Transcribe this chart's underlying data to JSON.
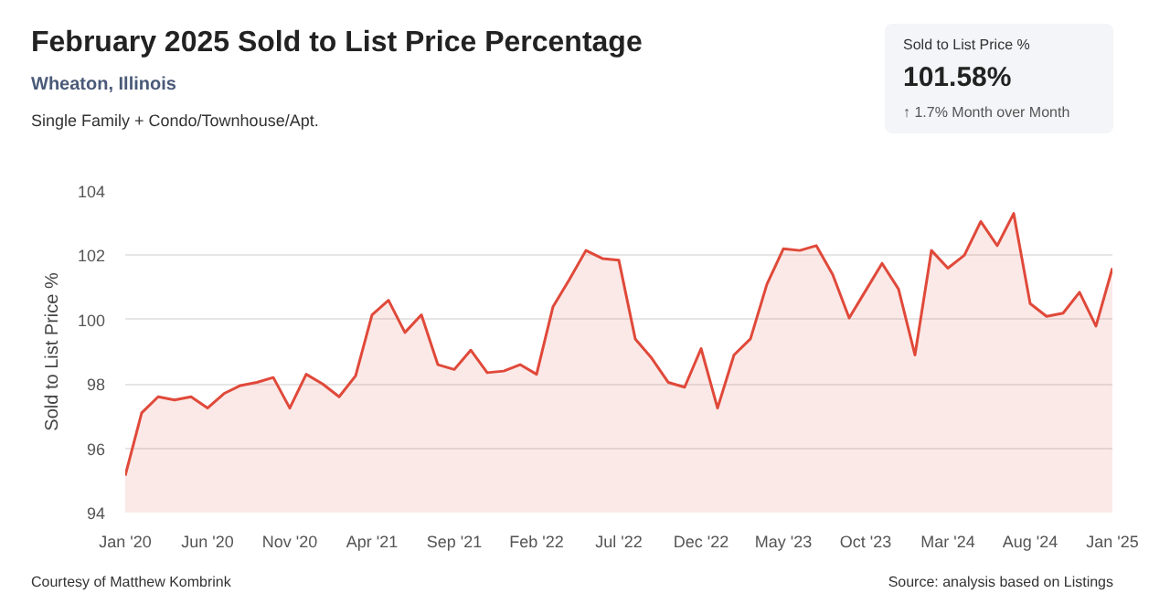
{
  "chart_data": {
    "type": "area",
    "title": "February 2025 Sold to List Price Percentage",
    "subtitle": "Wheaton, Illinois",
    "annotations": [
      "Single Family + Condo/Townhouse/Apt.",
      "Sold to List Price %",
      "101.58%",
      "↑ 1.7% Month over Month",
      "Courtesy of Matthew Kombrink",
      "Source: analysis based on Listings"
    ],
    "ylabel": "Sold to List Price %",
    "x": [
      "2020-01",
      "2020-02",
      "2020-03",
      "2020-04",
      "2020-05",
      "2020-06",
      "2020-07",
      "2020-08",
      "2020-09",
      "2020-10",
      "2020-11",
      "2020-12",
      "2021-01",
      "2021-02",
      "2021-03",
      "2021-04",
      "2021-05",
      "2021-06",
      "2021-07",
      "2021-08",
      "2021-09",
      "2021-10",
      "2021-11",
      "2021-12",
      "2022-01",
      "2022-02",
      "2022-03",
      "2022-04",
      "2022-05",
      "2022-06",
      "2022-07",
      "2022-08",
      "2022-09",
      "2022-10",
      "2022-11",
      "2022-12",
      "2023-01",
      "2023-02",
      "2023-03",
      "2023-04",
      "2023-05",
      "2023-06",
      "2023-07",
      "2023-08",
      "2023-09",
      "2023-10",
      "2023-11",
      "2023-12",
      "2024-01",
      "2024-02",
      "2024-03",
      "2024-04",
      "2024-05",
      "2024-06",
      "2024-07",
      "2024-08",
      "2024-09",
      "2024-10",
      "2024-11",
      "2024-12",
      "2025-01"
    ],
    "values": [
      95.15,
      97.1,
      97.6,
      97.5,
      97.6,
      97.25,
      97.7,
      97.95,
      98.05,
      98.2,
      97.25,
      98.3,
      98.0,
      97.6,
      98.25,
      100.15,
      100.6,
      99.6,
      100.15,
      98.6,
      98.45,
      99.05,
      98.35,
      98.4,
      98.6,
      98.3,
      100.4,
      101.25,
      102.15,
      101.9,
      101.85,
      99.4,
      98.8,
      98.05,
      97.9,
      99.1,
      97.25,
      98.9,
      99.4,
      101.1,
      102.2,
      102.15,
      102.3,
      101.4,
      100.05,
      100.9,
      101.75,
      100.95,
      98.9,
      102.15,
      101.6,
      102.0,
      103.05,
      102.3,
      103.3,
      100.5,
      100.1,
      100.2,
      100.85,
      99.8,
      101.6
    ],
    "color": "#e0493a",
    "xlim": [
      "2020-01",
      "2025-01"
    ],
    "xticks": [
      {
        "value": "2020-01",
        "label": "Jan '20"
      },
      {
        "value": "2020-06",
        "label": "Jun '20"
      },
      {
        "value": "2020-11",
        "label": "Nov '20"
      },
      {
        "value": "2021-04",
        "label": "Apr '21"
      },
      {
        "value": "2021-09",
        "label": "Sep '21"
      },
      {
        "value": "2022-02",
        "label": "Feb '22"
      },
      {
        "value": "2022-07",
        "label": "Jul '22"
      },
      {
        "value": "2022-12",
        "label": "Dec '22"
      },
      {
        "value": "2023-05",
        "label": "May '23"
      },
      {
        "value": "2023-10",
        "label": "Oct '23"
      },
      {
        "value": "2024-03",
        "label": "Mar '24"
      },
      {
        "value": "2024-08",
        "label": "Aug '24"
      },
      {
        "value": "2025-01",
        "label": "Jan '25"
      }
    ],
    "ylim": [
      94,
      104
    ],
    "yticks": [
      94,
      96,
      98,
      100,
      102,
      104
    ],
    "grid": "y"
  }
}
